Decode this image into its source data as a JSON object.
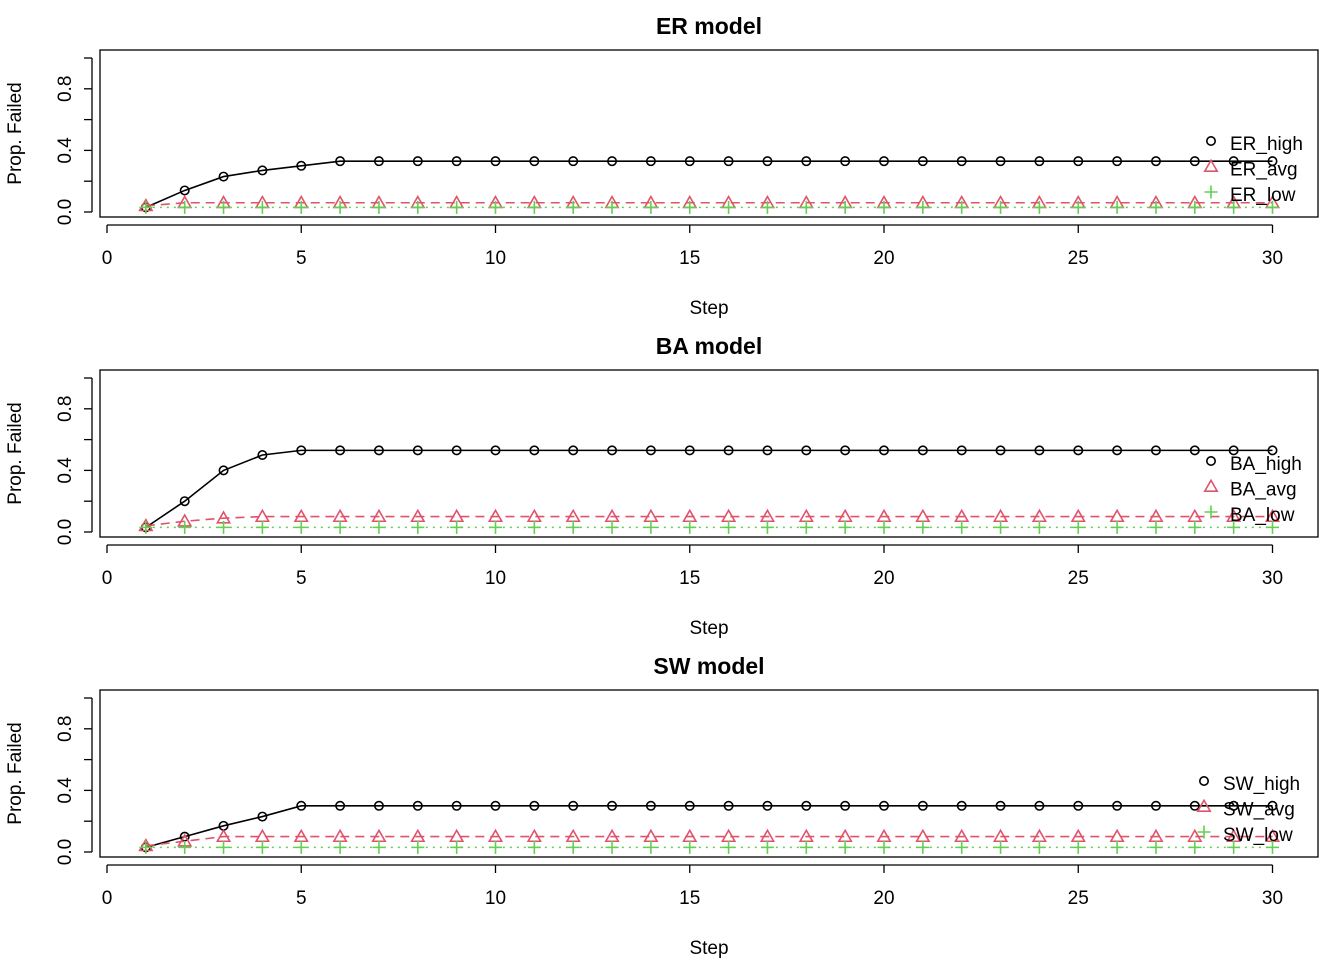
{
  "chart_data": [
    {
      "type": "line",
      "title": "ER model",
      "xlabel": "Step",
      "ylabel": "Prop. Failed",
      "xlim": [
        0,
        30
      ],
      "ylim": [
        0,
        1
      ],
      "xticks": [
        "0",
        "5",
        "10",
        "15",
        "20",
        "25",
        "30"
      ],
      "yticks": [
        "0.0",
        "0.4",
        "0.8"
      ],
      "legend_position": "right",
      "x": [
        1,
        2,
        3,
        4,
        5,
        6,
        7,
        8,
        9,
        10,
        11,
        12,
        13,
        14,
        15,
        16,
        17,
        18,
        19,
        20,
        21,
        22,
        23,
        24,
        25,
        26,
        27,
        28,
        29,
        30
      ],
      "series": [
        {
          "name": "ER_high",
          "color": "#000000",
          "marker": "circle",
          "line": "solid",
          "values": [
            0.03,
            0.14,
            0.23,
            0.27,
            0.3,
            0.33,
            0.33,
            0.33,
            0.33,
            0.33,
            0.33,
            0.33,
            0.33,
            0.33,
            0.33,
            0.33,
            0.33,
            0.33,
            0.33,
            0.33,
            0.33,
            0.33,
            0.33,
            0.33,
            0.33,
            0.33,
            0.33,
            0.33,
            0.33,
            0.33
          ]
        },
        {
          "name": "ER_avg",
          "color": "#DF536B",
          "marker": "triangle",
          "line": "dashed",
          "values": [
            0.04,
            0.06,
            0.06,
            0.06,
            0.06,
            0.06,
            0.06,
            0.06,
            0.06,
            0.06,
            0.06,
            0.06,
            0.06,
            0.06,
            0.06,
            0.06,
            0.06,
            0.06,
            0.06,
            0.06,
            0.06,
            0.06,
            0.06,
            0.06,
            0.06,
            0.06,
            0.06,
            0.06,
            0.06,
            0.06
          ]
        },
        {
          "name": "ER_low",
          "color": "#61D04F",
          "marker": "plus",
          "line": "dotted",
          "values": [
            0.03,
            0.03,
            0.03,
            0.03,
            0.03,
            0.03,
            0.03,
            0.03,
            0.03,
            0.03,
            0.03,
            0.03,
            0.03,
            0.03,
            0.03,
            0.03,
            0.03,
            0.03,
            0.03,
            0.03,
            0.03,
            0.03,
            0.03,
            0.03,
            0.03,
            0.03,
            0.03,
            0.03,
            0.03,
            0.03
          ]
        }
      ]
    },
    {
      "type": "line",
      "title": "BA model",
      "xlabel": "Step",
      "ylabel": "Prop. Failed",
      "xlim": [
        0,
        30
      ],
      "ylim": [
        0,
        1
      ],
      "xticks": [
        "0",
        "5",
        "10",
        "15",
        "20",
        "25",
        "30"
      ],
      "yticks": [
        "0.0",
        "0.4",
        "0.8"
      ],
      "legend_position": "right",
      "x": [
        1,
        2,
        3,
        4,
        5,
        6,
        7,
        8,
        9,
        10,
        11,
        12,
        13,
        14,
        15,
        16,
        17,
        18,
        19,
        20,
        21,
        22,
        23,
        24,
        25,
        26,
        27,
        28,
        29,
        30
      ],
      "series": [
        {
          "name": "BA_high",
          "color": "#000000",
          "marker": "circle",
          "line": "solid",
          "values": [
            0.03,
            0.2,
            0.4,
            0.5,
            0.53,
            0.53,
            0.53,
            0.53,
            0.53,
            0.53,
            0.53,
            0.53,
            0.53,
            0.53,
            0.53,
            0.53,
            0.53,
            0.53,
            0.53,
            0.53,
            0.53,
            0.53,
            0.53,
            0.53,
            0.53,
            0.53,
            0.53,
            0.53,
            0.53,
            0.53
          ]
        },
        {
          "name": "BA_avg",
          "color": "#DF536B",
          "marker": "triangle",
          "line": "dashed",
          "values": [
            0.04,
            0.07,
            0.09,
            0.1,
            0.1,
            0.1,
            0.1,
            0.1,
            0.1,
            0.1,
            0.1,
            0.1,
            0.1,
            0.1,
            0.1,
            0.1,
            0.1,
            0.1,
            0.1,
            0.1,
            0.1,
            0.1,
            0.1,
            0.1,
            0.1,
            0.1,
            0.1,
            0.1,
            0.1,
            0.1
          ]
        },
        {
          "name": "BA_low",
          "color": "#61D04F",
          "marker": "plus",
          "line": "dotted",
          "values": [
            0.03,
            0.03,
            0.03,
            0.03,
            0.03,
            0.03,
            0.03,
            0.03,
            0.03,
            0.03,
            0.03,
            0.03,
            0.03,
            0.03,
            0.03,
            0.03,
            0.03,
            0.03,
            0.03,
            0.03,
            0.03,
            0.03,
            0.03,
            0.03,
            0.03,
            0.03,
            0.03,
            0.03,
            0.03,
            0.03
          ]
        }
      ]
    },
    {
      "type": "line",
      "title": "SW model",
      "xlabel": "Step",
      "ylabel": "Prop. Failed",
      "xlim": [
        0,
        30
      ],
      "ylim": [
        0,
        1
      ],
      "xticks": [
        "0",
        "5",
        "10",
        "15",
        "20",
        "25",
        "30"
      ],
      "yticks": [
        "0.0",
        "0.4",
        "0.8"
      ],
      "legend_position": "right",
      "x": [
        1,
        2,
        3,
        4,
        5,
        6,
        7,
        8,
        9,
        10,
        11,
        12,
        13,
        14,
        15,
        16,
        17,
        18,
        19,
        20,
        21,
        22,
        23,
        24,
        25,
        26,
        27,
        28,
        29,
        30
      ],
      "series": [
        {
          "name": "SW_high",
          "color": "#000000",
          "marker": "circle",
          "line": "solid",
          "values": [
            0.03,
            0.1,
            0.17,
            0.23,
            0.3,
            0.3,
            0.3,
            0.3,
            0.3,
            0.3,
            0.3,
            0.3,
            0.3,
            0.3,
            0.3,
            0.3,
            0.3,
            0.3,
            0.3,
            0.3,
            0.3,
            0.3,
            0.3,
            0.3,
            0.3,
            0.3,
            0.3,
            0.3,
            0.3,
            0.3
          ]
        },
        {
          "name": "SW_avg",
          "color": "#DF536B",
          "marker": "triangle",
          "line": "dashed",
          "values": [
            0.04,
            0.07,
            0.1,
            0.1,
            0.1,
            0.1,
            0.1,
            0.1,
            0.1,
            0.1,
            0.1,
            0.1,
            0.1,
            0.1,
            0.1,
            0.1,
            0.1,
            0.1,
            0.1,
            0.1,
            0.1,
            0.1,
            0.1,
            0.1,
            0.1,
            0.1,
            0.1,
            0.1,
            0.1,
            0.1
          ]
        },
        {
          "name": "SW_low",
          "color": "#61D04F",
          "marker": "plus",
          "line": "dotted",
          "values": [
            0.03,
            0.03,
            0.03,
            0.03,
            0.03,
            0.03,
            0.03,
            0.03,
            0.03,
            0.03,
            0.03,
            0.03,
            0.03,
            0.03,
            0.03,
            0.03,
            0.03,
            0.03,
            0.03,
            0.03,
            0.03,
            0.03,
            0.03,
            0.03,
            0.03,
            0.03,
            0.03,
            0.03,
            0.03,
            0.03
          ]
        }
      ]
    }
  ]
}
